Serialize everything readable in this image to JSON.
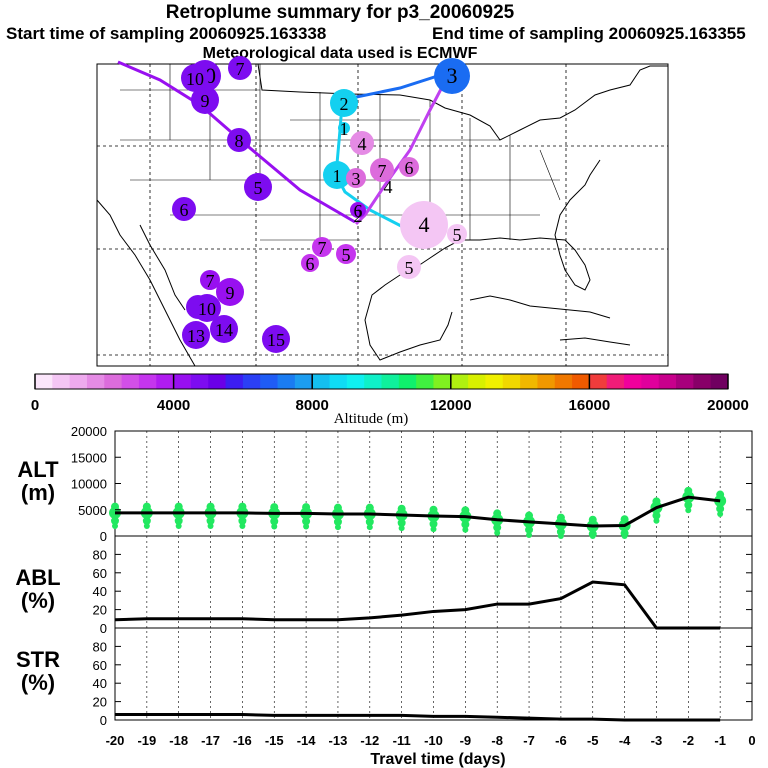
{
  "header": {
    "title": "Retroplume summary for p3_20060925",
    "start_label": "Start time of sampling 20060925.163338",
    "end_label": "End time of sampling 20060925.163355",
    "met_label": "Meteorological data used is ECMWF"
  },
  "colorbar": {
    "ticks": [
      "0",
      "4000",
      "8000",
      "12000",
      "16000",
      "20000"
    ],
    "title": "Altitude  (m)",
    "range": [
      0,
      20000
    ],
    "colors": [
      "#fbe6fb",
      "#f4c6f4",
      "#eeaaee",
      "#e58be5",
      "#dc6cdc",
      "#d24fe8",
      "#c535ee",
      "#b01cf0",
      "#9810f0",
      "#7d0cf0",
      "#6a00e8",
      "#3c1df2",
      "#2b3ff5",
      "#1f5cf5",
      "#1a7cf2",
      "#1c9df0",
      "#14bff0",
      "#10dcf5",
      "#10f0f0",
      "#10f0c8",
      "#10f09c",
      "#10f06c",
      "#40f040",
      "#80f020",
      "#b0f010",
      "#d8f000",
      "#f0f000",
      "#f0d800",
      "#f0b800",
      "#f09800",
      "#f07800",
      "#f05a00",
      "#f03c3c",
      "#f01c78",
      "#f0009c",
      "#e0009c",
      "#c8008c",
      "#a8007c",
      "#880068",
      "#700060"
    ]
  },
  "map": {
    "labels": [
      "10",
      "10",
      "9",
      "8",
      "5",
      "6",
      "7",
      "2",
      "1",
      "3",
      "4",
      "4",
      "7",
      "6",
      "1",
      "6",
      "3",
      "4",
      "5",
      "7",
      "5",
      "6",
      "5",
      "7",
      "9",
      "8",
      "10",
      "13",
      "14",
      "15",
      "2"
    ],
    "trajectory_colors": {
      "purple": "#9810f0",
      "cyan": "#14d0f0",
      "blue": "#1a6cf2",
      "violet": "#c040f0"
    }
  },
  "panels": {
    "alt_label": [
      "ALT",
      "(m)"
    ],
    "abl_label": [
      "ABL",
      "(%)"
    ],
    "str_label": [
      "STR",
      "(%)"
    ]
  },
  "chart_data": [
    {
      "type": "line",
      "panel": "ALT",
      "ylabel": "ALT (m)",
      "ylim": [
        0,
        20000
      ],
      "yticks": [
        "20000",
        "15000",
        "10000",
        "5000",
        "0"
      ],
      "x": [
        -20,
        -19,
        -18,
        -17,
        -16,
        -15,
        -14,
        -13,
        -12,
        -11,
        -10,
        -9,
        -8,
        -7,
        -6,
        -5,
        -4,
        -3,
        -2,
        -1
      ],
      "values": [
        4400,
        4400,
        4400,
        4400,
        4400,
        4300,
        4300,
        4200,
        4200,
        4000,
        3800,
        3700,
        3100,
        2700,
        2300,
        1900,
        2000,
        5400,
        7400,
        6700
      ]
    },
    {
      "type": "line",
      "panel": "ABL",
      "ylabel": "ABL (%)",
      "ylim": [
        0,
        100
      ],
      "yticks": [
        "80",
        "60",
        "40",
        "20",
        "0"
      ],
      "x": [
        -20,
        -19,
        -18,
        -17,
        -16,
        -15,
        -14,
        -13,
        -12,
        -11,
        -10,
        -9,
        -8,
        -7,
        -6,
        -5,
        -4,
        -3,
        -2,
        -1
      ],
      "values": [
        9,
        10,
        10,
        10,
        10,
        9,
        9,
        9,
        11,
        14,
        18,
        20,
        26,
        26,
        32,
        50,
        47,
        0,
        0,
        0
      ]
    },
    {
      "type": "line",
      "panel": "STR",
      "ylabel": "STR (%)",
      "ylim": [
        0,
        100
      ],
      "yticks": [
        "80",
        "60",
        "40",
        "20",
        "0"
      ],
      "xlabel": "Travel time (days)",
      "x": [
        -20,
        -19,
        -18,
        -17,
        -16,
        -15,
        -14,
        -13,
        -12,
        -11,
        -10,
        -9,
        -8,
        -7,
        -6,
        -5,
        -4,
        -3,
        -2,
        -1
      ],
      "xticks": [
        "-20",
        "-19",
        "-18",
        "-17",
        "-16",
        "-15",
        "-14",
        "-13",
        "-12",
        "-11",
        "-10",
        "-9",
        "-8",
        "-7",
        "-6",
        "-5",
        "-4",
        "-3",
        "-2",
        "-1",
        "0"
      ],
      "values": [
        6,
        6,
        6,
        6,
        6,
        5,
        5,
        5,
        5,
        5,
        4,
        4,
        3,
        2,
        1,
        1,
        0,
        0,
        0,
        0
      ]
    }
  ]
}
